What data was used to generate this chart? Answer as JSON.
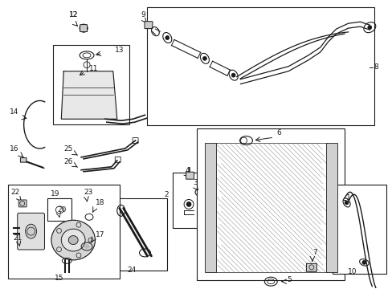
{
  "bg_color": "#ffffff",
  "lc": "#1a1a1a",
  "fig_width": 4.89,
  "fig_height": 3.6,
  "dpi": 100,
  "boxes": {
    "hose8": [
      0.375,
      0.655,
      0.585,
      0.325
    ],
    "res11": [
      0.135,
      0.695,
      0.185,
      0.185
    ],
    "rad1": [
      0.485,
      0.155,
      0.365,
      0.455
    ],
    "pump15": [
      0.015,
      0.145,
      0.27,
      0.305
    ],
    "hose24": [
      0.25,
      0.145,
      0.155,
      0.215
    ],
    "hose10": [
      0.84,
      0.145,
      0.135,
      0.24
    ],
    "parts23": [
      0.4,
      0.37,
      0.09,
      0.115
    ]
  }
}
